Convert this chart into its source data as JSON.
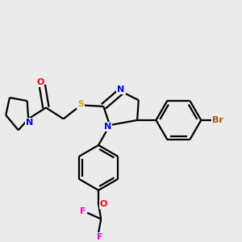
{
  "background_color": "#ebebeb",
  "bond_color": "#000000",
  "atom_colors": {
    "N": "#0000ff",
    "O_carbonyl": "#ff0000",
    "O_ether": "#ff0000",
    "S": "#ccaa00",
    "Br": "#b05000",
    "F": "#ff00cc",
    "C": "#000000"
  },
  "figsize": [
    3.0,
    3.0
  ],
  "dpi": 100
}
